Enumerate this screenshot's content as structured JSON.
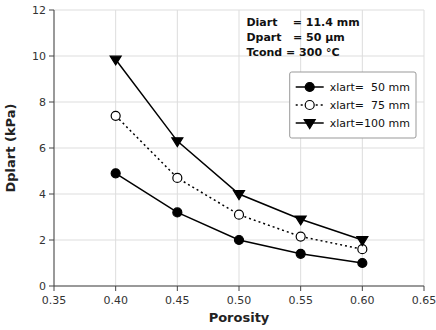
{
  "chart_data": {
    "type": "line",
    "x_label": "Porosity",
    "y_label": "Dplart (kPa)",
    "x": [
      0.4,
      0.45,
      0.5,
      0.55,
      0.6
    ],
    "series": [
      {
        "name": "xlart=  50 mm",
        "color": "black",
        "marker": "circle",
        "line_style": "solid",
        "values": [
          4.9,
          3.2,
          2.0,
          1.4,
          1.0
        ]
      },
      {
        "name": "xlart=  75 mm",
        "color": "black",
        "marker": "open-circle",
        "line_style": "dotted",
        "values": [
          7.4,
          4.7,
          3.1,
          2.15,
          1.6
        ]
      },
      {
        "name": "xlart=100 mm",
        "color": "black",
        "marker": "triangle-down",
        "line_style": "solid",
        "values": [
          9.85,
          6.3,
          4.0,
          2.9,
          2.0
        ]
      }
    ],
    "xlim": [
      0.35,
      0.65
    ],
    "ylim": [
      0,
      12
    ],
    "xticks": [
      0.35,
      {
        "value": 0.4,
        "label": "0.40"
      },
      0.45,
      {
        "value": 0.5,
        "label": "0.50"
      },
      0.55,
      {
        "value": 0.6,
        "label": "0.60"
      },
      0.65
    ],
    "yticks": [
      0,
      2,
      4,
      6,
      8,
      10,
      12
    ],
    "annotations": [
      "Diart    = 11.4 mm",
      "Dpart   = 50 μm",
      "Tcond = 300 °C"
    ],
    "grid": true,
    "legend": "right"
  }
}
